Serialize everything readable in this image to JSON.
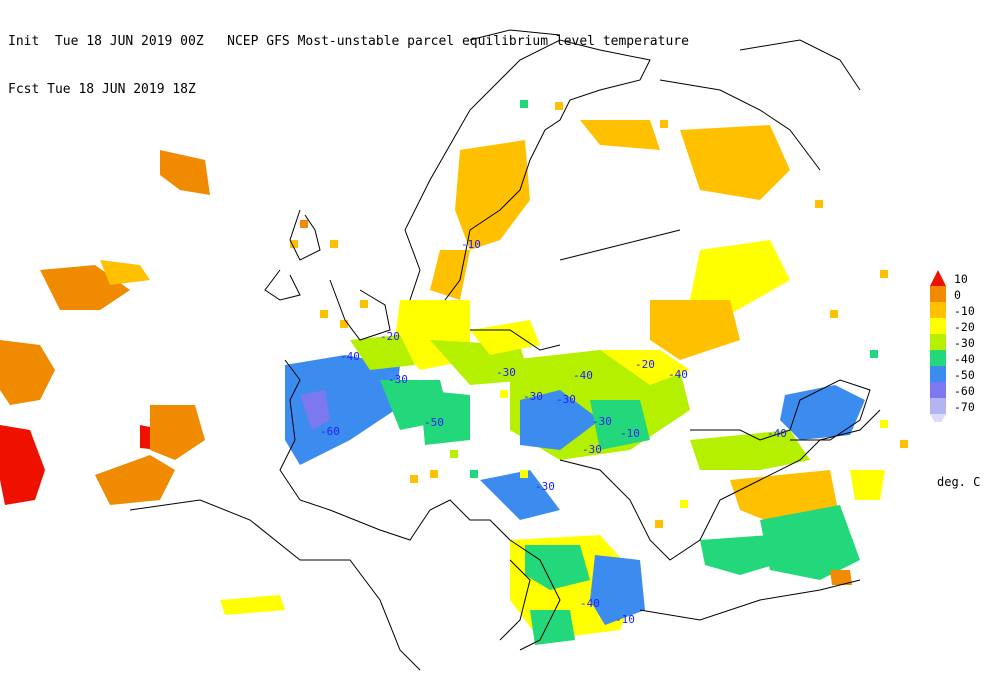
{
  "header": {
    "line1": "Init  Tue 18 JUN 2019 00Z   NCEP GFS Most-unstable parcel equilibrium level temperature",
    "line2": "Fcst Tue 18 JUN 2019 18Z"
  },
  "legend": {
    "units": "deg. C",
    "levels": [
      {
        "label": "10",
        "color": "#ee1100"
      },
      {
        "label": "0",
        "color": "#f08a00"
      },
      {
        "label": "-10",
        "color": "#ffc000"
      },
      {
        "label": "-20",
        "color": "#ffff00"
      },
      {
        "label": "-30",
        "color": "#b4f000"
      },
      {
        "label": "-40",
        "color": "#22d87a"
      },
      {
        "label": "-50",
        "color": "#3c8cf0"
      },
      {
        "label": "-60",
        "color": "#7b78f0"
      },
      {
        "label": "-70",
        "color": "#b4b4f0"
      }
    ],
    "bottom_arrow_color": "#dcdcf8"
  },
  "contour_labels": [
    {
      "text": "-10"
    },
    {
      "text": "-20"
    },
    {
      "text": "-40"
    },
    {
      "text": "-30"
    },
    {
      "text": "-60"
    },
    {
      "text": "-50"
    },
    {
      "text": "-30"
    },
    {
      "text": "-40"
    },
    {
      "text": "-30"
    },
    {
      "text": "-30"
    },
    {
      "text": "-10"
    },
    {
      "text": "-30"
    },
    {
      "text": "-40"
    },
    {
      "text": "-20"
    },
    {
      "text": "-30"
    },
    {
      "text": "-40"
    },
    {
      "text": "-30"
    },
    {
      "text": "-40"
    },
    {
      "text": "-10"
    }
  ]
}
